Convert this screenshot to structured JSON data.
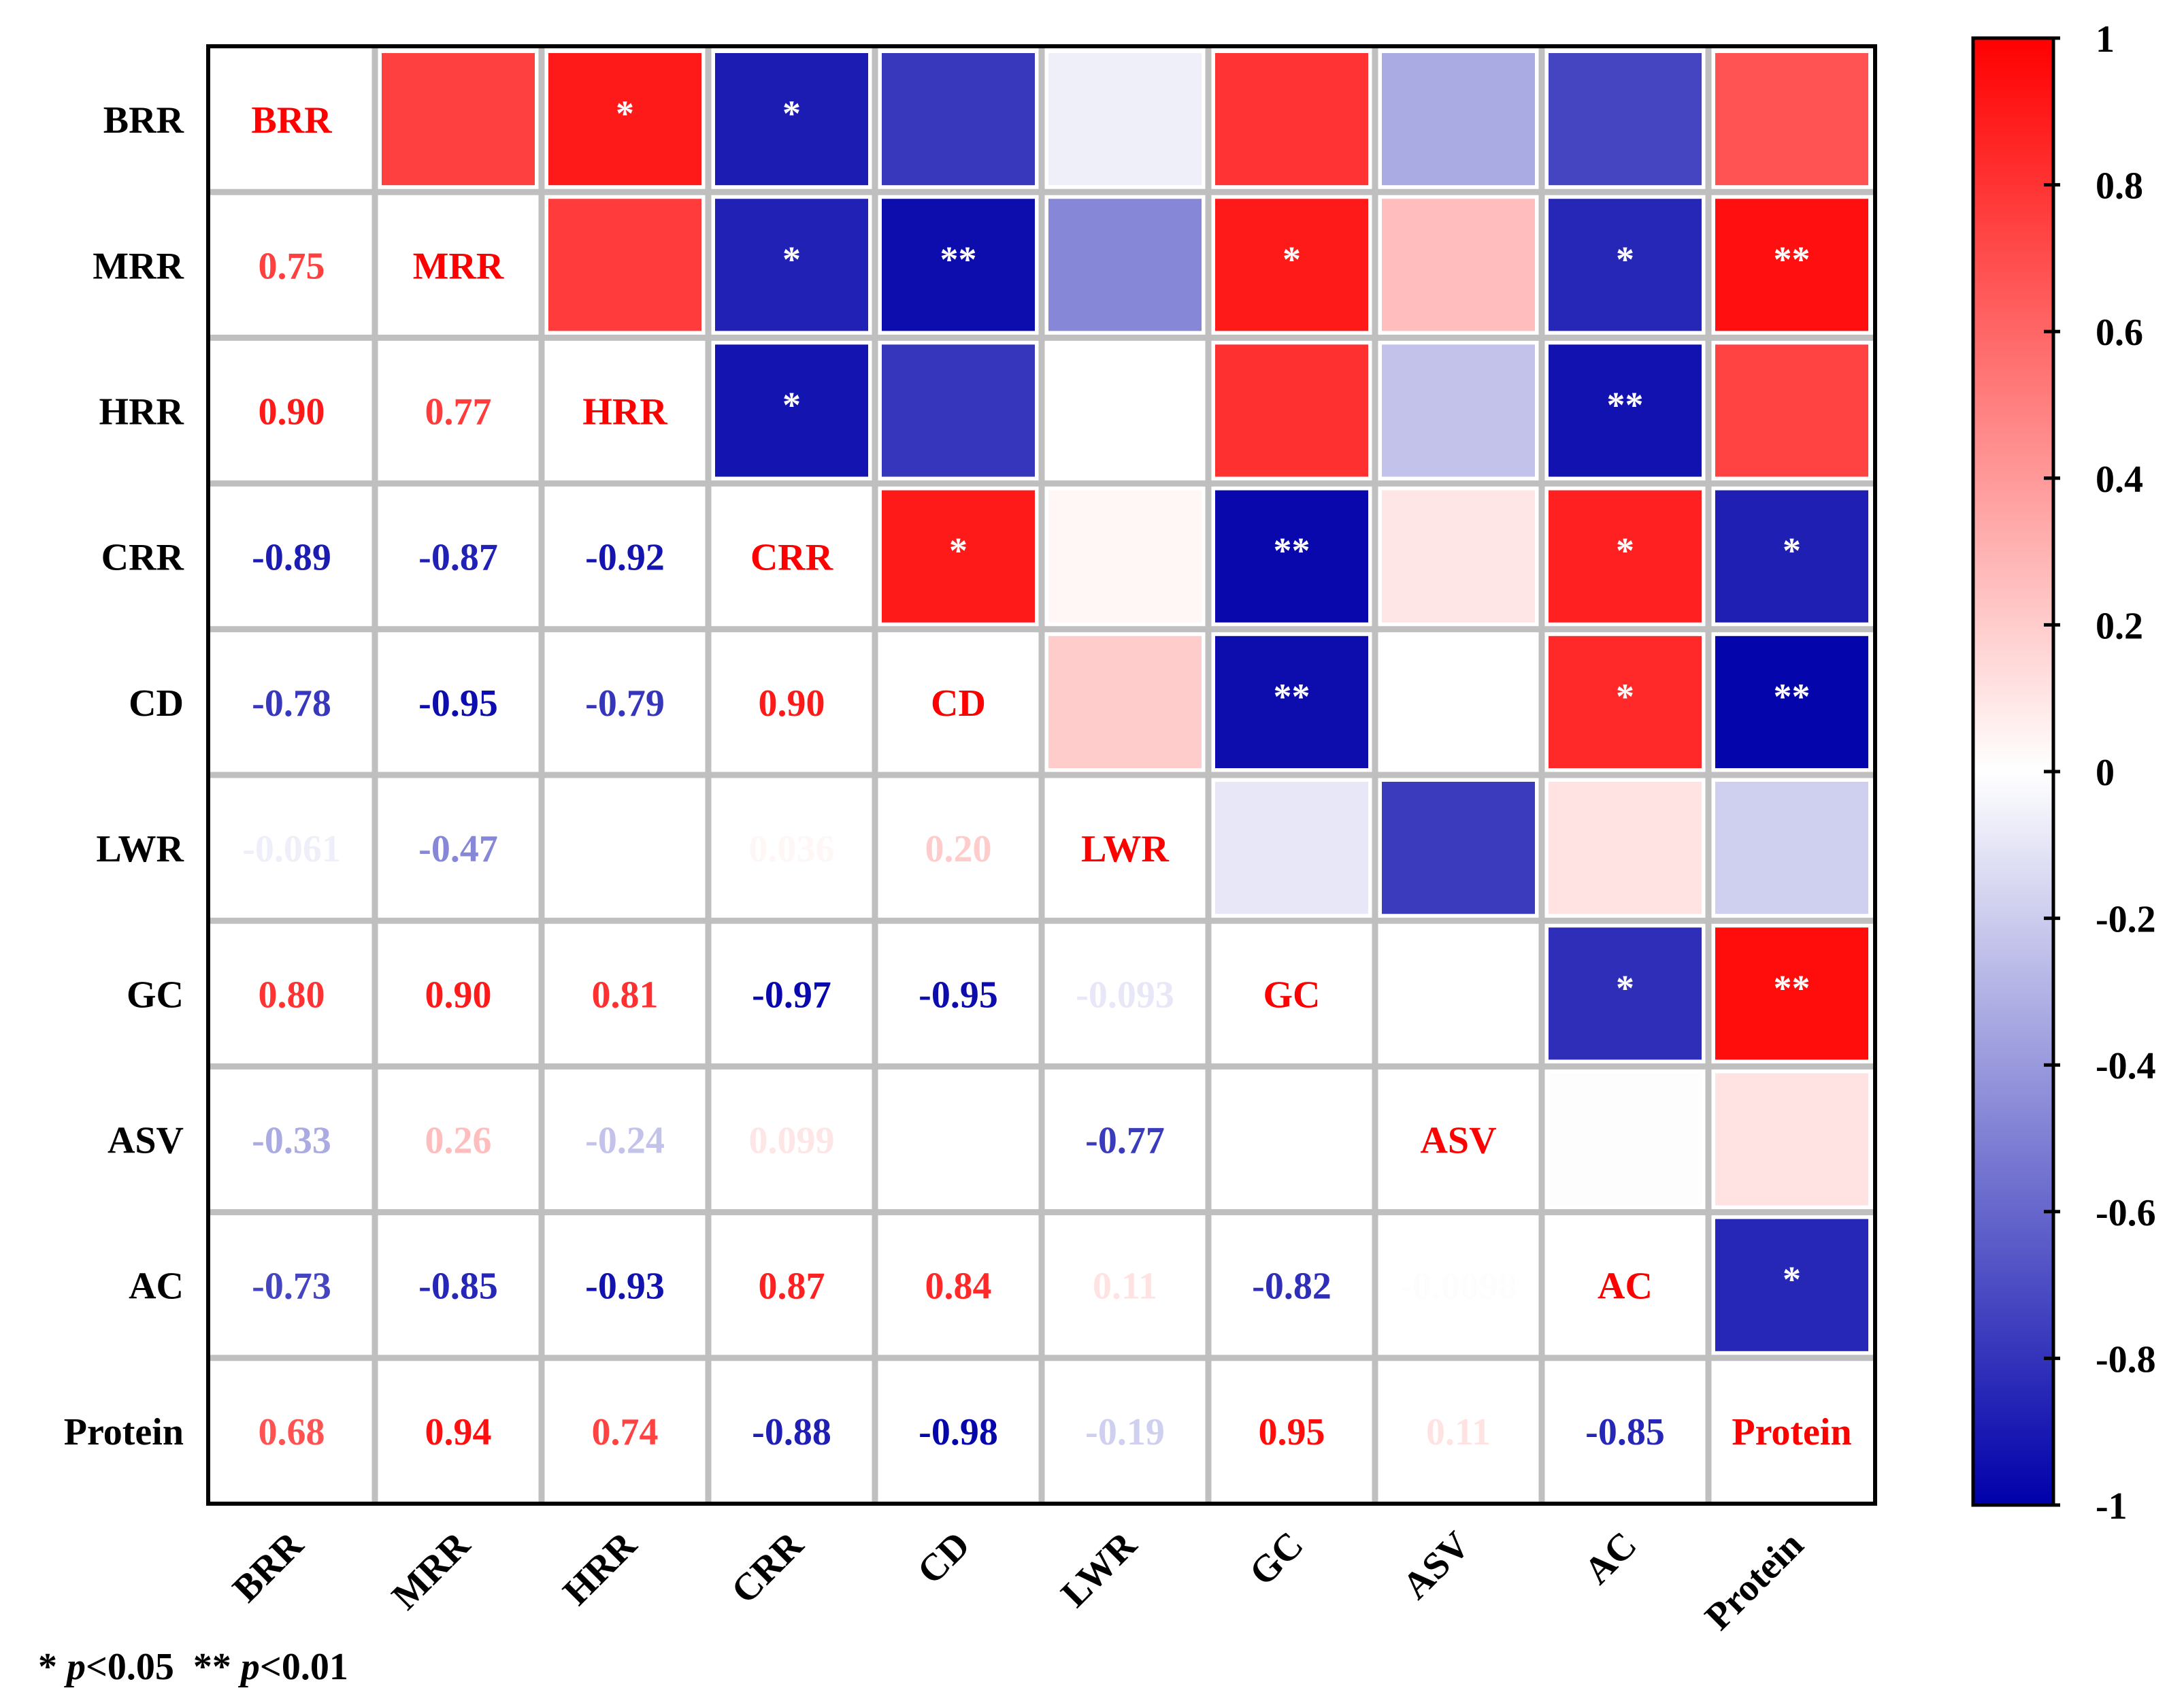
{
  "chart_data": {
    "type": "heatmap",
    "title": "",
    "variables": [
      "BRR",
      "MRR",
      "HRR",
      "CRR",
      "CD",
      "LWR",
      "GC",
      "ASV",
      "AC",
      "Protein"
    ],
    "value_range": [
      -1,
      1
    ],
    "colorbar_ticks": [
      "1",
      "0.8",
      "0.6",
      "0.4",
      "0.2",
      "0",
      "-0.2",
      "-0.4",
      "-0.6",
      "-0.8",
      "-1"
    ],
    "colors": {
      "negative": "#0000aa",
      "zero": "#ffffff",
      "positive": "#ff0000",
      "grid": "#bfbfbf",
      "frame": "#000000"
    },
    "lower_triangle_labels": [
      {
        "row": "MRR",
        "col": "BRR",
        "text": "0.75",
        "value": 0.75
      },
      {
        "row": "HRR",
        "col": "BRR",
        "text": "0.90",
        "value": 0.9
      },
      {
        "row": "HRR",
        "col": "MRR",
        "text": "0.77",
        "value": 0.77
      },
      {
        "row": "CRR",
        "col": "BRR",
        "text": "-0.89",
        "value": -0.89
      },
      {
        "row": "CRR",
        "col": "MRR",
        "text": "-0.87",
        "value": -0.87
      },
      {
        "row": "CRR",
        "col": "HRR",
        "text": "-0.92",
        "value": -0.92
      },
      {
        "row": "CD",
        "col": "BRR",
        "text": "-0.78",
        "value": -0.78
      },
      {
        "row": "CD",
        "col": "MRR",
        "text": "-0.95",
        "value": -0.95
      },
      {
        "row": "CD",
        "col": "HRR",
        "text": "-0.79",
        "value": -0.79
      },
      {
        "row": "CD",
        "col": "CRR",
        "text": "0.90",
        "value": 0.9
      },
      {
        "row": "LWR",
        "col": "BRR",
        "text": "-0.061",
        "value": -0.061
      },
      {
        "row": "LWR",
        "col": "MRR",
        "text": "-0.47",
        "value": -0.47
      },
      {
        "row": "LWR",
        "col": "CRR",
        "text": "0.036",
        "value": 0.036
      },
      {
        "row": "LWR",
        "col": "CD",
        "text": "0.20",
        "value": 0.2
      },
      {
        "row": "GC",
        "col": "BRR",
        "text": "0.80",
        "value": 0.8
      },
      {
        "row": "GC",
        "col": "MRR",
        "text": "0.90",
        "value": 0.9
      },
      {
        "row": "GC",
        "col": "HRR",
        "text": "0.81",
        "value": 0.81
      },
      {
        "row": "GC",
        "col": "CRR",
        "text": "-0.97",
        "value": -0.97
      },
      {
        "row": "GC",
        "col": "CD",
        "text": "-0.95",
        "value": -0.95
      },
      {
        "row": "GC",
        "col": "LWR",
        "text": "-0.093",
        "value": -0.093
      },
      {
        "row": "ASV",
        "col": "BRR",
        "text": "-0.33",
        "value": -0.33
      },
      {
        "row": "ASV",
        "col": "MRR",
        "text": "0.26",
        "value": 0.26
      },
      {
        "row": "ASV",
        "col": "HRR",
        "text": "-0.24",
        "value": -0.24
      },
      {
        "row": "ASV",
        "col": "CRR",
        "text": "0.099",
        "value": 0.099
      },
      {
        "row": "ASV",
        "col": "LWR",
        "text": "-0.77",
        "value": -0.77
      },
      {
        "row": "AC",
        "col": "BRR",
        "text": "-0.73",
        "value": -0.73
      },
      {
        "row": "AC",
        "col": "MRR",
        "text": "-0.85",
        "value": -0.85
      },
      {
        "row": "AC",
        "col": "HRR",
        "text": "-0.93",
        "value": -0.93
      },
      {
        "row": "AC",
        "col": "CRR",
        "text": "0.87",
        "value": 0.87
      },
      {
        "row": "AC",
        "col": "CD",
        "text": "0.84",
        "value": 0.84
      },
      {
        "row": "AC",
        "col": "LWR",
        "text": "0.11",
        "value": 0.11
      },
      {
        "row": "AC",
        "col": "GC",
        "text": "-0.82",
        "value": -0.82
      },
      {
        "row": "AC",
        "col": "ASV",
        "text": "-0.0098",
        "value": -0.0098
      },
      {
        "row": "Protein",
        "col": "BRR",
        "text": "0.68",
        "value": 0.68
      },
      {
        "row": "Protein",
        "col": "MRR",
        "text": "0.94",
        "value": 0.94
      },
      {
        "row": "Protein",
        "col": "HRR",
        "text": "0.74",
        "value": 0.74
      },
      {
        "row": "Protein",
        "col": "CRR",
        "text": "-0.88",
        "value": -0.88
      },
      {
        "row": "Protein",
        "col": "CD",
        "text": "-0.98",
        "value": -0.98
      },
      {
        "row": "Protein",
        "col": "LWR",
        "text": "-0.19",
        "value": -0.19
      },
      {
        "row": "Protein",
        "col": "GC",
        "text": "0.95",
        "value": 0.95
      },
      {
        "row": "Protein",
        "col": "ASV",
        "text": "0.11",
        "value": 0.11
      },
      {
        "row": "Protein",
        "col": "AC",
        "text": "-0.85",
        "value": -0.85
      }
    ],
    "upper_triangle_cells": [
      {
        "row": "BRR",
        "col": "MRR",
        "value": 0.75,
        "sig": ""
      },
      {
        "row": "BRR",
        "col": "HRR",
        "value": 0.9,
        "sig": "*"
      },
      {
        "row": "BRR",
        "col": "CRR",
        "value": -0.89,
        "sig": "*"
      },
      {
        "row": "BRR",
        "col": "CD",
        "value": -0.78,
        "sig": ""
      },
      {
        "row": "BRR",
        "col": "LWR",
        "value": -0.061,
        "sig": ""
      },
      {
        "row": "BRR",
        "col": "GC",
        "value": 0.8,
        "sig": ""
      },
      {
        "row": "BRR",
        "col": "ASV",
        "value": -0.33,
        "sig": ""
      },
      {
        "row": "BRR",
        "col": "AC",
        "value": -0.73,
        "sig": ""
      },
      {
        "row": "BRR",
        "col": "Protein",
        "value": 0.68,
        "sig": ""
      },
      {
        "row": "MRR",
        "col": "HRR",
        "value": 0.77,
        "sig": ""
      },
      {
        "row": "MRR",
        "col": "CRR",
        "value": -0.87,
        "sig": "*"
      },
      {
        "row": "MRR",
        "col": "CD",
        "value": -0.95,
        "sig": "**"
      },
      {
        "row": "MRR",
        "col": "LWR",
        "value": -0.47,
        "sig": ""
      },
      {
        "row": "MRR",
        "col": "GC",
        "value": 0.9,
        "sig": "*"
      },
      {
        "row": "MRR",
        "col": "ASV",
        "value": 0.26,
        "sig": ""
      },
      {
        "row": "MRR",
        "col": "AC",
        "value": -0.85,
        "sig": "*"
      },
      {
        "row": "MRR",
        "col": "Protein",
        "value": 0.94,
        "sig": "**"
      },
      {
        "row": "HRR",
        "col": "CRR",
        "value": -0.92,
        "sig": "*"
      },
      {
        "row": "HRR",
        "col": "CD",
        "value": -0.79,
        "sig": ""
      },
      {
        "row": "HRR",
        "col": "LWR",
        "value": 0.0,
        "sig": ""
      },
      {
        "row": "HRR",
        "col": "GC",
        "value": 0.81,
        "sig": ""
      },
      {
        "row": "HRR",
        "col": "ASV",
        "value": -0.24,
        "sig": ""
      },
      {
        "row": "HRR",
        "col": "AC",
        "value": -0.93,
        "sig": "**"
      },
      {
        "row": "HRR",
        "col": "Protein",
        "value": 0.74,
        "sig": ""
      },
      {
        "row": "CRR",
        "col": "CD",
        "value": 0.9,
        "sig": "*"
      },
      {
        "row": "CRR",
        "col": "LWR",
        "value": 0.036,
        "sig": ""
      },
      {
        "row": "CRR",
        "col": "GC",
        "value": -0.97,
        "sig": "**"
      },
      {
        "row": "CRR",
        "col": "ASV",
        "value": 0.099,
        "sig": ""
      },
      {
        "row": "CRR",
        "col": "AC",
        "value": 0.87,
        "sig": "*"
      },
      {
        "row": "CRR",
        "col": "Protein",
        "value": -0.88,
        "sig": "*"
      },
      {
        "row": "CD",
        "col": "LWR",
        "value": 0.2,
        "sig": ""
      },
      {
        "row": "CD",
        "col": "GC",
        "value": -0.95,
        "sig": "**"
      },
      {
        "row": "CD",
        "col": "ASV",
        "value": 0.0,
        "sig": ""
      },
      {
        "row": "CD",
        "col": "AC",
        "value": 0.84,
        "sig": "*"
      },
      {
        "row": "CD",
        "col": "Protein",
        "value": -0.98,
        "sig": "**"
      },
      {
        "row": "LWR",
        "col": "GC",
        "value": -0.093,
        "sig": ""
      },
      {
        "row": "LWR",
        "col": "ASV",
        "value": -0.77,
        "sig": ""
      },
      {
        "row": "LWR",
        "col": "AC",
        "value": 0.11,
        "sig": ""
      },
      {
        "row": "LWR",
        "col": "Protein",
        "value": -0.19,
        "sig": ""
      },
      {
        "row": "GC",
        "col": "ASV",
        "value": 0.0,
        "sig": ""
      },
      {
        "row": "GC",
        "col": "AC",
        "value": -0.82,
        "sig": "*"
      },
      {
        "row": "GC",
        "col": "Protein",
        "value": 0.95,
        "sig": "**"
      },
      {
        "row": "ASV",
        "col": "AC",
        "value": -0.0098,
        "sig": ""
      },
      {
        "row": "ASV",
        "col": "Protein",
        "value": 0.11,
        "sig": ""
      },
      {
        "row": "AC",
        "col": "Protein",
        "value": -0.85,
        "sig": "*"
      }
    ],
    "significance_note": {
      "part1_mark": "*",
      "part1_p": "p",
      "part1_rest": "<0.05",
      "part2_mark": "**",
      "part2_p": "p",
      "part2_rest": "<0.01"
    }
  }
}
